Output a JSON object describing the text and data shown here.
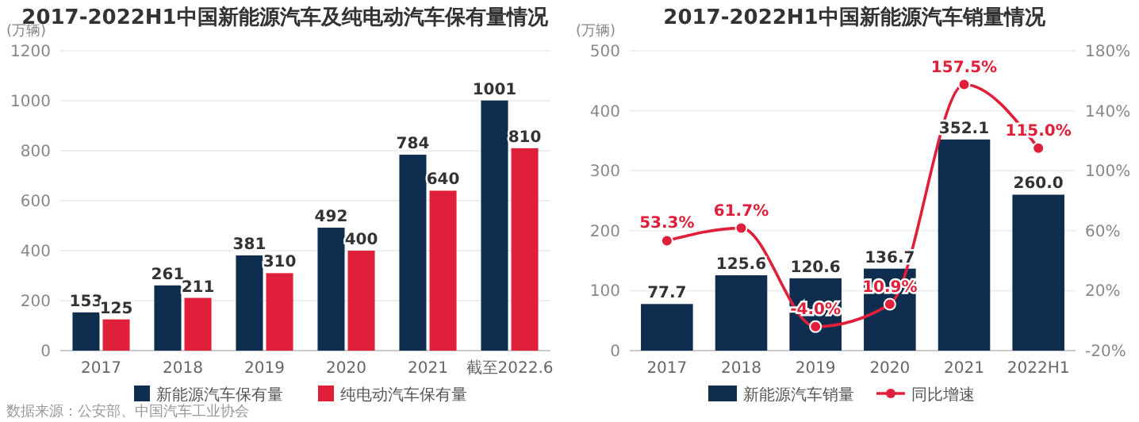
{
  "chart_data": [
    {
      "type": "bar",
      "title": "2017-2022H1中国新能源汽车及纯电动汽车保有量情况",
      "ylabel": "(万辆)",
      "categories": [
        "2017",
        "2018",
        "2019",
        "2020",
        "2021",
        "截至2022.6"
      ],
      "series": [
        {
          "name": "新能源汽车保有量",
          "color": "#0f2d4f",
          "values": [
            153,
            261,
            381,
            492,
            784,
            1001
          ]
        },
        {
          "name": "纯电动汽车保有量",
          "color": "#e0203a",
          "values": [
            125,
            211,
            310,
            400,
            640,
            810
          ]
        }
      ],
      "ylim": [
        0,
        1200
      ],
      "yticks": [
        0,
        200,
        400,
        600,
        800,
        1000,
        1200
      ],
      "grid": "y",
      "legend": "bottom",
      "data_labels": true,
      "annotations": [
        "数据来源：公安部、中国汽车工业协会"
      ]
    },
    {
      "type": "bar",
      "title": "2017-2022H1中国新能源汽车销量情况",
      "ylabel": "(万辆)",
      "categories": [
        "2017",
        "2018",
        "2019",
        "2020",
        "2021",
        "2022H1"
      ],
      "series": [
        {
          "name": "新能源汽车销量",
          "color": "#0f2d4f",
          "values": [
            77.7,
            125.6,
            120.6,
            136.7,
            352.1,
            260.0
          ],
          "value_labels": [
            "77.7",
            "125.6",
            "120.6",
            "136.7",
            "352.1",
            "260.0"
          ]
        },
        {
          "name": "同比增速",
          "type": "line",
          "axis": "y2",
          "color": "#e0203a",
          "values": [
            53.3,
            61.7,
            -4.0,
            10.9,
            157.5,
            115.0
          ],
          "value_labels": [
            "53.3%",
            "61.7%",
            "-4.0%",
            "10.9%",
            "157.5%",
            "115.0%"
          ]
        }
      ],
      "ylim": [
        0,
        500
      ],
      "yticks": [
        0,
        100,
        200,
        300,
        400,
        500
      ],
      "y2lim": [
        -20,
        180
      ],
      "y2ticks": [
        {
          "value": -20,
          "label": "-20%"
        },
        {
          "value": 20,
          "label": "20%"
        },
        {
          "value": 60,
          "label": "60%"
        },
        {
          "value": 100,
          "label": "100%"
        },
        {
          "value": 140,
          "label": "140%"
        },
        {
          "value": 180,
          "label": "180%"
        }
      ],
      "grid": "y",
      "legend": "bottom",
      "marker": "circle"
    }
  ]
}
